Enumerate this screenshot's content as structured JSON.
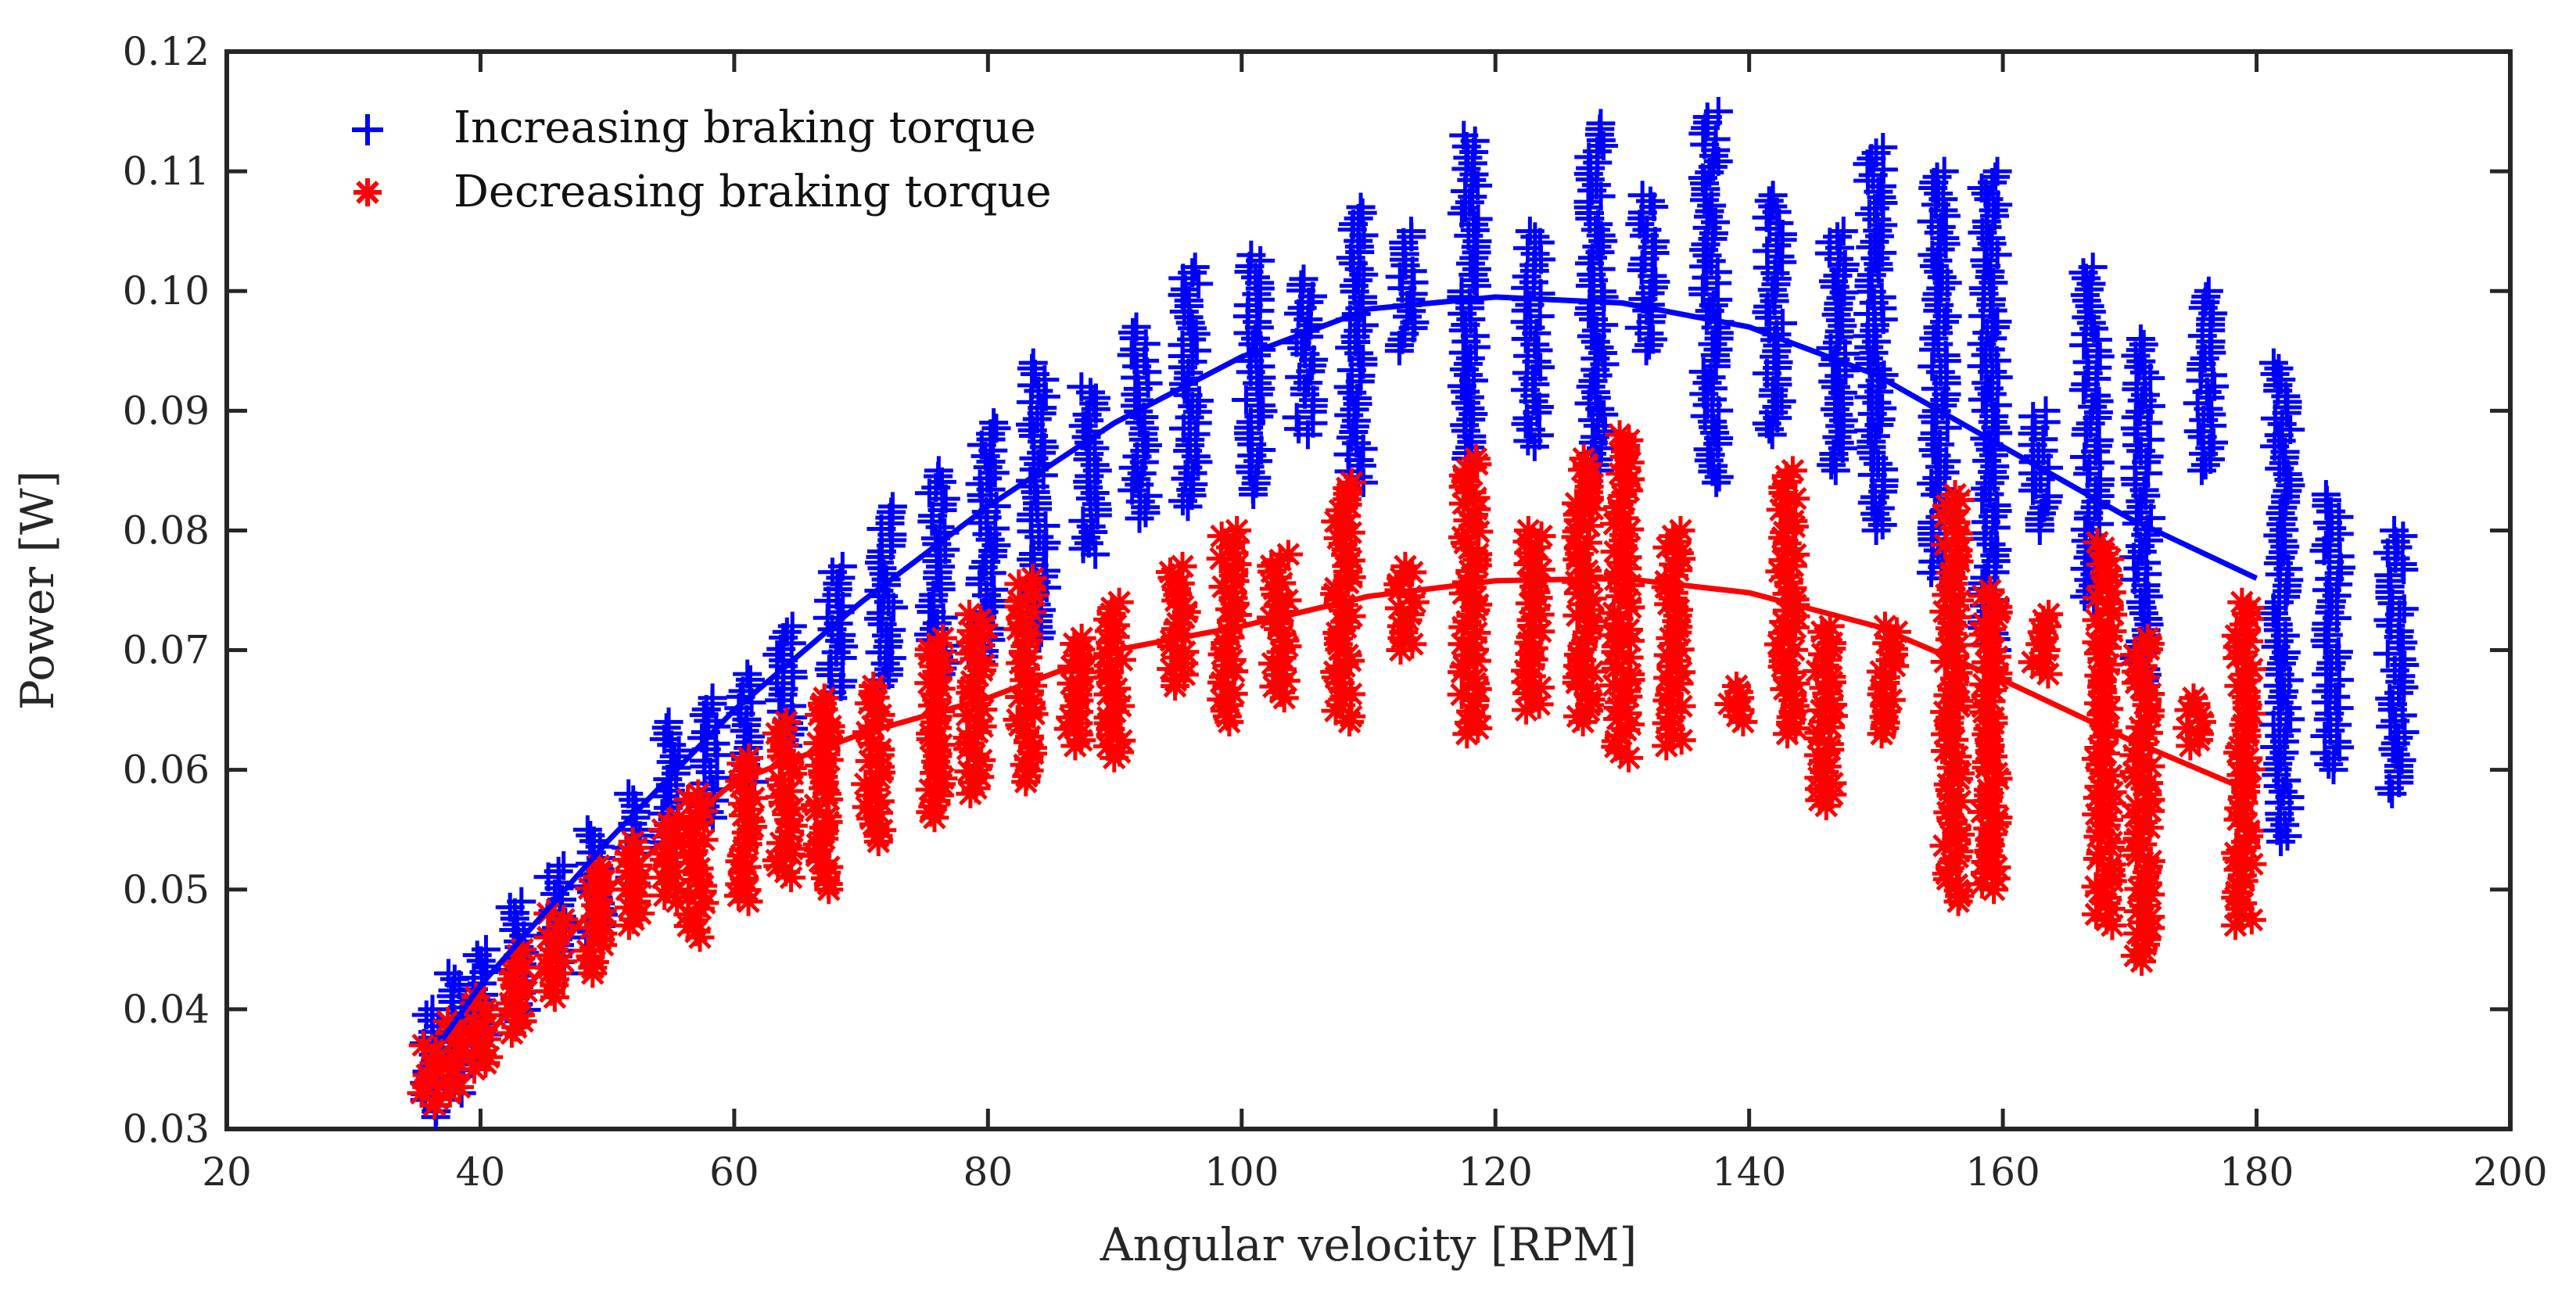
{
  "chart_data": {
    "type": "scatter",
    "title": "",
    "xlabel": "Angular velocity [RPM]",
    "ylabel": "Power [W]",
    "xlim": [
      20,
      200
    ],
    "ylim": [
      0.03,
      0.12
    ],
    "x_ticks": [
      20,
      40,
      60,
      80,
      100,
      120,
      140,
      160,
      180,
      200
    ],
    "y_ticks": [
      0.03,
      0.04,
      0.05,
      0.06,
      0.07,
      0.08,
      0.09,
      0.1,
      0.11,
      0.12
    ],
    "x_tick_labels": [
      "20",
      "40",
      "60",
      "80",
      "100",
      "120",
      "140",
      "160",
      "180",
      "200"
    ],
    "y_tick_labels": [
      "0.03",
      "0.04",
      "0.05",
      "0.06",
      "0.07",
      "0.08",
      "0.09",
      "0.10",
      "0.11",
      "0.12"
    ],
    "grid": false,
    "legend_position": "top-left",
    "series": [
      {
        "name": "Increasing braking torque",
        "marker": "plus",
        "color": "#0000ff",
        "point_clusters": [
          {
            "x": 36,
            "y_min": 0.031,
            "y_max": 0.04
          },
          {
            "x": 38,
            "y_min": 0.033,
            "y_max": 0.043
          },
          {
            "x": 40,
            "y_min": 0.036,
            "y_max": 0.045
          },
          {
            "x": 43,
            "y_min": 0.039,
            "y_max": 0.049
          },
          {
            "x": 46,
            "y_min": 0.043,
            "y_max": 0.052
          },
          {
            "x": 49,
            "y_min": 0.046,
            "y_max": 0.055
          },
          {
            "x": 52,
            "y_min": 0.05,
            "y_max": 0.058
          },
          {
            "x": 55,
            "y_min": 0.053,
            "y_max": 0.064
          },
          {
            "x": 58,
            "y_min": 0.056,
            "y_max": 0.066
          },
          {
            "x": 61,
            "y_min": 0.059,
            "y_max": 0.068
          },
          {
            "x": 64,
            "y_min": 0.062,
            "y_max": 0.072
          },
          {
            "x": 68,
            "y_min": 0.066,
            "y_max": 0.077
          },
          {
            "x": 72,
            "y_min": 0.067,
            "y_max": 0.082
          },
          {
            "x": 76,
            "y_min": 0.068,
            "y_max": 0.085
          },
          {
            "x": 80,
            "y_min": 0.069,
            "y_max": 0.089
          },
          {
            "x": 84,
            "y_min": 0.071,
            "y_max": 0.094
          },
          {
            "x": 88,
            "y_min": 0.078,
            "y_max": 0.092
          },
          {
            "x": 92,
            "y_min": 0.081,
            "y_max": 0.097
          },
          {
            "x": 96,
            "y_min": 0.082,
            "y_max": 0.102
          },
          {
            "x": 101,
            "y_min": 0.083,
            "y_max": 0.103
          },
          {
            "x": 105,
            "y_min": 0.088,
            "y_max": 0.101
          },
          {
            "x": 109,
            "y_min": 0.084,
            "y_max": 0.107
          },
          {
            "x": 113,
            "y_min": 0.095,
            "y_max": 0.105
          },
          {
            "x": 118,
            "y_min": 0.086,
            "y_max": 0.113
          },
          {
            "x": 123,
            "y_min": 0.087,
            "y_max": 0.105
          },
          {
            "x": 128,
            "y_min": 0.085,
            "y_max": 0.114
          },
          {
            "x": 132,
            "y_min": 0.095,
            "y_max": 0.108
          },
          {
            "x": 137,
            "y_min": 0.084,
            "y_max": 0.115
          },
          {
            "x": 142,
            "y_min": 0.088,
            "y_max": 0.108
          },
          {
            "x": 147,
            "y_min": 0.085,
            "y_max": 0.105
          },
          {
            "x": 150,
            "y_min": 0.08,
            "y_max": 0.112
          },
          {
            "x": 155,
            "y_min": 0.076,
            "y_max": 0.11
          },
          {
            "x": 159,
            "y_min": 0.07,
            "y_max": 0.11
          },
          {
            "x": 163,
            "y_min": 0.08,
            "y_max": 0.09
          },
          {
            "x": 167,
            "y_min": 0.074,
            "y_max": 0.102
          },
          {
            "x": 171,
            "y_min": 0.067,
            "y_max": 0.096
          },
          {
            "x": 176,
            "y_min": 0.085,
            "y_max": 0.1
          },
          {
            "x": 182,
            "y_min": 0.054,
            "y_max": 0.094
          },
          {
            "x": 186,
            "y_min": 0.06,
            "y_max": 0.083
          },
          {
            "x": 191,
            "y_min": 0.058,
            "y_max": 0.08
          }
        ],
        "fit_curve": {
          "x": [
            37,
            40,
            50,
            60,
            70,
            80,
            90,
            100,
            110,
            120,
            130,
            140,
            150,
            160,
            170,
            180
          ],
          "y": [
            0.0375,
            0.042,
            0.054,
            0.065,
            0.074,
            0.082,
            0.089,
            0.0945,
            0.0985,
            0.0995,
            0.099,
            0.097,
            0.093,
            0.087,
            0.081,
            0.076
          ]
        }
      },
      {
        "name": "Decreasing braking torque",
        "marker": "asterisk",
        "color": "#ff0000",
        "point_clusters": [
          {
            "x": 36,
            "y_min": 0.032,
            "y_max": 0.037
          },
          {
            "x": 38,
            "y_min": 0.033,
            "y_max": 0.039
          },
          {
            "x": 40,
            "y_min": 0.035,
            "y_max": 0.041
          },
          {
            "x": 43,
            "y_min": 0.038,
            "y_max": 0.045
          },
          {
            "x": 46,
            "y_min": 0.041,
            "y_max": 0.048
          },
          {
            "x": 49,
            "y_min": 0.043,
            "y_max": 0.052
          },
          {
            "x": 52,
            "y_min": 0.047,
            "y_max": 0.054
          },
          {
            "x": 55,
            "y_min": 0.049,
            "y_max": 0.056
          },
          {
            "x": 57,
            "y_min": 0.046,
            "y_max": 0.058
          },
          {
            "x": 61,
            "y_min": 0.049,
            "y_max": 0.061
          },
          {
            "x": 64,
            "y_min": 0.051,
            "y_max": 0.064
          },
          {
            "x": 67,
            "y_min": 0.05,
            "y_max": 0.066
          },
          {
            "x": 71,
            "y_min": 0.054,
            "y_max": 0.067
          },
          {
            "x": 76,
            "y_min": 0.056,
            "y_max": 0.071
          },
          {
            "x": 79,
            "y_min": 0.058,
            "y_max": 0.073
          },
          {
            "x": 83,
            "y_min": 0.059,
            "y_max": 0.076
          },
          {
            "x": 87,
            "y_min": 0.062,
            "y_max": 0.071
          },
          {
            "x": 90,
            "y_min": 0.061,
            "y_max": 0.074
          },
          {
            "x": 95,
            "y_min": 0.067,
            "y_max": 0.077
          },
          {
            "x": 99,
            "y_min": 0.064,
            "y_max": 0.08
          },
          {
            "x": 103,
            "y_min": 0.066,
            "y_max": 0.078
          },
          {
            "x": 108,
            "y_min": 0.064,
            "y_max": 0.084
          },
          {
            "x": 113,
            "y_min": 0.07,
            "y_max": 0.077
          },
          {
            "x": 118,
            "y_min": 0.063,
            "y_max": 0.086
          },
          {
            "x": 123,
            "y_min": 0.065,
            "y_max": 0.08
          },
          {
            "x": 127,
            "y_min": 0.064,
            "y_max": 0.086
          },
          {
            "x": 130,
            "y_min": 0.061,
            "y_max": 0.088
          },
          {
            "x": 134,
            "y_min": 0.062,
            "y_max": 0.08
          },
          {
            "x": 139,
            "y_min": 0.064,
            "y_max": 0.067
          },
          {
            "x": 143,
            "y_min": 0.063,
            "y_max": 0.085
          },
          {
            "x": 146,
            "y_min": 0.057,
            "y_max": 0.072
          },
          {
            "x": 151,
            "y_min": 0.063,
            "y_max": 0.072
          },
          {
            "x": 156,
            "y_min": 0.049,
            "y_max": 0.083
          },
          {
            "x": 159,
            "y_min": 0.05,
            "y_max": 0.075
          },
          {
            "x": 163,
            "y_min": 0.068,
            "y_max": 0.073
          },
          {
            "x": 168,
            "y_min": 0.047,
            "y_max": 0.079
          },
          {
            "x": 171,
            "y_min": 0.044,
            "y_max": 0.071
          },
          {
            "x": 175,
            "y_min": 0.062,
            "y_max": 0.066
          },
          {
            "x": 179,
            "y_min": 0.047,
            "y_max": 0.074
          }
        ],
        "fit_curve": {
          "x": [
            37,
            40,
            50,
            60,
            70,
            80,
            90,
            100,
            110,
            120,
            130,
            140,
            150,
            160,
            170,
            180
          ],
          "y": [
            0.034,
            0.037,
            0.05,
            0.059,
            0.063,
            0.066,
            0.07,
            0.072,
            0.0745,
            0.0758,
            0.076,
            0.0748,
            0.072,
            0.0675,
            0.0625,
            0.058
          ]
        }
      }
    ]
  }
}
